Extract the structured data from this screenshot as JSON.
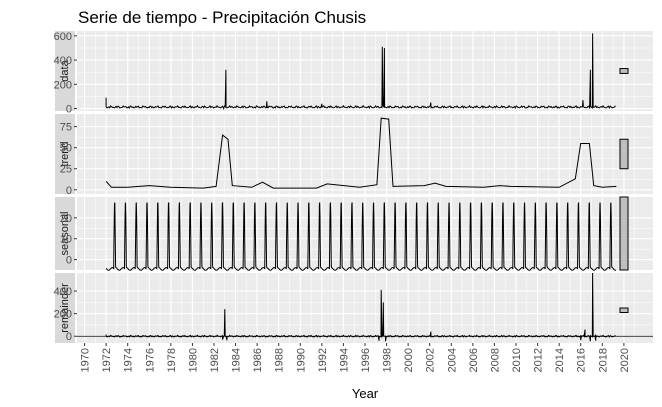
{
  "chart_data": {
    "type": "line",
    "title": "Serie de tiempo - Precipitación Chusis",
    "xlabel": "Year",
    "xlim": [
      1969.3,
      2022.7
    ],
    "x_ticks": [
      "1970",
      "1972",
      "1974",
      "1976",
      "1978",
      "1980",
      "1982",
      "1984",
      "1986",
      "1988",
      "1990",
      "1992",
      "1994",
      "1996",
      "1998",
      "2000",
      "2002",
      "2004",
      "2006",
      "2008",
      "2010",
      "2012",
      "2014",
      "2016",
      "2018",
      "2020"
    ],
    "panels": [
      {
        "name": "data",
        "ylim": [
          -20,
          640
        ],
        "y_ticks": [
          "0",
          "200",
          "400",
          "600"
        ],
        "y_tick_values": [
          0,
          200,
          400,
          600
        ],
        "range_bar": [
          290,
          330
        ],
        "series": [
          {
            "x": [
              1972.0,
              1982.9,
              1983.1,
              1986.9,
              1992.0,
              1997.6,
              1997.8,
              2002.1,
              2016.2,
              2016.9,
              2017.1
            ],
            "y": [
              90,
              0,
              320,
              60,
              40,
              510,
              500,
              50,
              70,
              320,
              620
            ]
          }
        ]
      },
      {
        "name": "trend",
        "ylim": [
          -5,
          90
        ],
        "y_ticks": [
          "0",
          "25",
          "50",
          "75"
        ],
        "y_tick_values": [
          0,
          25,
          50,
          75
        ],
        "range_bar": [
          25,
          60
        ],
        "series": [
          {
            "x": [
              1972.0,
              1972.5,
              1974.0,
              1976.0,
              1978.0,
              1981.0,
              1982.2,
              1982.8,
              1983.3,
              1983.7,
              1985.5,
              1986.5,
              1987.5,
              1991.5,
              1992.5,
              1995.5,
              1997.1,
              1997.5,
              1998.2,
              1998.6,
              2001.5,
              2002.5,
              2003.5,
              2007.0,
              2008.5,
              2009.5,
              2014.0,
              2015.5,
              2016.0,
              2016.8,
              2017.2,
              2018.0,
              2019.3
            ],
            "y": [
              10,
              3,
              3,
              5,
              3,
              2,
              4,
              65,
              60,
              5,
              3,
              9,
              2,
              2,
              7,
              3,
              6,
              85,
              84,
              4,
              5,
              8,
              4,
              3,
              5,
              4,
              3,
              13,
              55,
              55,
              5,
              3,
              4
            ]
          }
        ]
      },
      {
        "name": "seasonal",
        "ylim": [
          -5,
          30
        ],
        "y_ticks": [
          "0",
          "10",
          "20"
        ],
        "y_tick_values": [
          0,
          10,
          20
        ],
        "range_bar": [
          -5,
          30
        ],
        "series": [
          {
            "cycle": {
              "start": 1972.0,
              "end": 2019.3,
              "period": 1.0,
              "min": -4.5,
              "max": 28,
              "phase": 0.3
            }
          }
        ]
      },
      {
        "name": "remainder",
        "ylim": [
          -60,
          560
        ],
        "y_ticks": [
          "0",
          "200",
          "400"
        ],
        "y_tick_values": [
          0,
          200,
          400
        ],
        "range_bar": [
          210,
          250
        ],
        "series": [
          {
            "x": [
              1972.0,
              1982.8,
              1983.0,
              1983.2,
              1997.3,
              1997.5,
              1997.7,
              1997.9,
              2002.1,
              2016.0,
              2016.4,
              2016.9,
              2017.1,
              2017.4
            ],
            "y": [
              15,
              -30,
              240,
              -35,
              -40,
              410,
              300,
              -45,
              40,
              -35,
              60,
              -45,
              560,
              -40
            ]
          }
        ]
      }
    ],
    "grid": true,
    "grid_color": "#ffffff",
    "panel_bg": "#ebebeb",
    "strip_bg": "#d9d9d9",
    "line_color": "#000000",
    "range_bar_fill": "#bfbfbf"
  }
}
